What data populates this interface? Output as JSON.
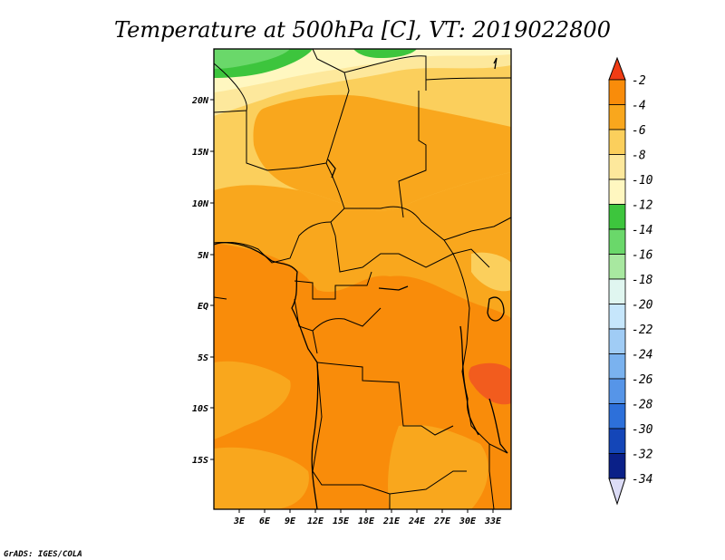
{
  "title": "Temperature at 500hPa [C], VT: 2019022800",
  "credit": "GrADS: IGES/COLA",
  "map": {
    "lon_labels": [
      "3E",
      "6E",
      "9E",
      "12E",
      "15E",
      "18E",
      "21E",
      "24E",
      "27E",
      "30E",
      "33E"
    ],
    "lat_labels": [
      "20N",
      "15N",
      "10N",
      "5N",
      "EQ",
      "5S",
      "10S",
      "15S"
    ]
  },
  "colorbar": {
    "labels": [
      "-2",
      "-4",
      "-6",
      "-8",
      "-10",
      "-12",
      "-14",
      "-16",
      "-18",
      "-20",
      "-22",
      "-24",
      "-26",
      "-28",
      "-30",
      "-32",
      "-34"
    ],
    "colors": [
      "#f25c1e",
      "#f98c0a",
      "#f9a71d",
      "#fbcf5c",
      "#fde89c",
      "#fff7c0",
      "#3dc53d",
      "#6ad86a",
      "#a8e8a0",
      "#e0f6f0",
      "#c6e6fb",
      "#a0ccf5",
      "#7ab2ef",
      "#5695e8",
      "#2d70da",
      "#1446b8",
      "#0a2088"
    ],
    "top_arrow_color": "#f03c14",
    "bottom_arrow_color": "#dcdcf6"
  }
}
